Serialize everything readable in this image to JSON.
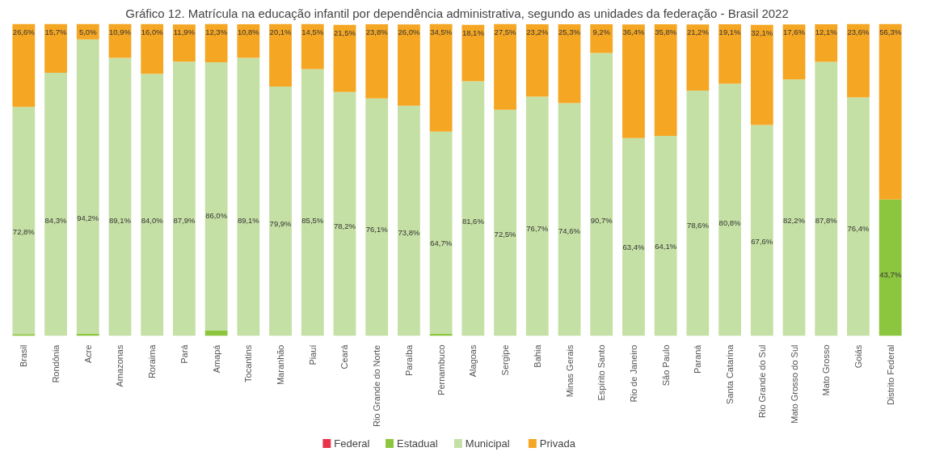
{
  "chart_data": {
    "type": "bar",
    "stacked": true,
    "title": "Gráfico 12. Matrícula na educação infantil por dependência administrativa, segundo as unidades da federação - Brasil 2022",
    "categories": [
      "Brasil",
      "Rondônia",
      "Acre",
      "Amazonas",
      "Roraima",
      "Pará",
      "Amapá",
      "Tocantins",
      "Maranhão",
      "Piauí",
      "Ceará",
      "Rio Grande do Norte",
      "Paraíba",
      "Pernambuco",
      "Alagoas",
      "Sergipe",
      "Bahia",
      "Minas Gerais",
      "Espírito Santo",
      "Rio de Janeiro",
      "São Paulo",
      "Paraná",
      "Santa Catarina",
      "Rio Grande do Sul",
      "Mato Grosso do Sul",
      "Mato Grosso",
      "Goiás",
      "Distrito Federal"
    ],
    "tick_labels": "x",
    "grid": false,
    "legend": "bottom",
    "series": [
      {
        "name": "Federal",
        "color": "#e8334a",
        "values": [
          null,
          null,
          null,
          null,
          null,
          null,
          null,
          null,
          null,
          null,
          null,
          null,
          null,
          null,
          null,
          null,
          null,
          null,
          null,
          null,
          null,
          null,
          null,
          null,
          null,
          null,
          null,
          null
        ]
      },
      {
        "name": "Estadual",
        "color": "#8cc63f",
        "values": [
          0.6,
          null,
          0.8,
          null,
          null,
          null,
          1.7,
          null,
          null,
          null,
          null,
          null,
          null,
          0.8,
          null,
          null,
          null,
          null,
          null,
          null,
          null,
          null,
          null,
          null,
          null,
          null,
          null,
          43.7
        ],
        "value_labels": [
          null,
          null,
          null,
          null,
          null,
          null,
          null,
          null,
          null,
          null,
          null,
          null,
          null,
          null,
          null,
          null,
          null,
          null,
          null,
          null,
          null,
          null,
          null,
          null,
          null,
          null,
          null,
          "43,7%"
        ]
      },
      {
        "name": "Municipal",
        "color": "#c5e0a5",
        "values": [
          72.8,
          84.3,
          94.2,
          89.1,
          84.0,
          87.9,
          86.0,
          89.1,
          79.9,
          85.5,
          78.2,
          76.1,
          73.8,
          64.7,
          81.6,
          72.5,
          76.7,
          74.6,
          90.7,
          63.4,
          64.1,
          78.6,
          80.8,
          67.6,
          82.2,
          87.8,
          76.4,
          null
        ],
        "value_labels": [
          "72,8%",
          "84,3%",
          "94,2%",
          "89,1%",
          "84,0%",
          "87,9%",
          "86,0%",
          "89,1%",
          "79,9%",
          "85,5%",
          "78,2%",
          "76,1%",
          "73,8%",
          "64,7%",
          "81,6%",
          "72,5%",
          "76,7%",
          "74,6%",
          "90,7%",
          "63,4%",
          "64,1%",
          "78,6%",
          "80,8%",
          "67,6%",
          "82,2%",
          "87,8%",
          "76,4%",
          null
        ]
      },
      {
        "name": "Privada",
        "color": "#f5a623",
        "values": [
          26.6,
          15.7,
          5.0,
          10.9,
          16.0,
          11.9,
          12.3,
          10.8,
          20.1,
          14.5,
          21.5,
          23.8,
          26.0,
          34.5,
          18.1,
          27.5,
          23.2,
          25.3,
          9.2,
          36.4,
          35.8,
          21.2,
          19.1,
          32.1,
          17.6,
          12.1,
          23.6,
          56.3
        ],
        "value_labels": [
          "26,6%",
          "15,7%",
          "5,0%",
          "10,9%",
          "16,0%",
          "11,9%",
          "12,3%",
          "10,8%",
          "20,1%",
          "14,5%",
          "21,5%",
          "23,8%",
          "26,0%",
          "34,5%",
          "18,1%",
          "27,5%",
          "23,2%",
          "25,3%",
          "9,2%",
          "36,4%",
          "35,8%",
          "21,2%",
          "19,1%",
          "32,1%",
          "17,6%",
          "12,1%",
          "23,6%",
          "56,3%"
        ]
      }
    ]
  }
}
